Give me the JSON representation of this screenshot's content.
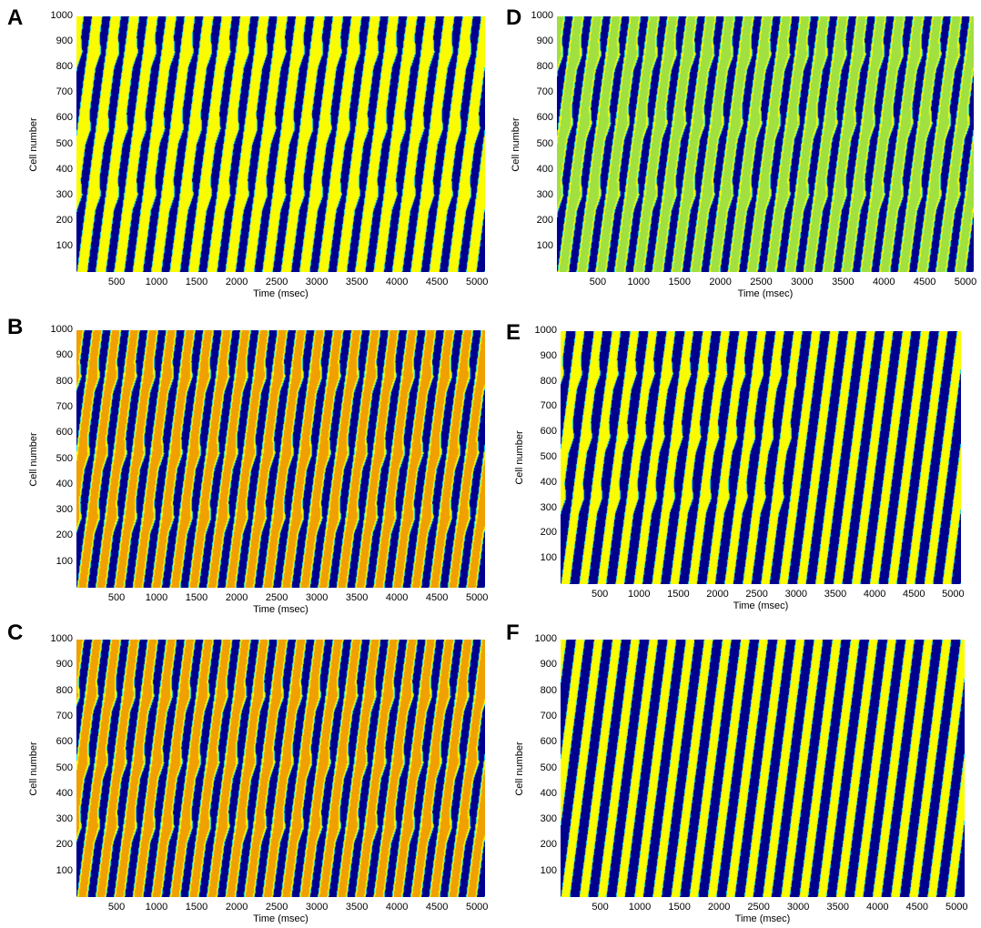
{
  "chart_data": [
    {
      "panel": "A",
      "type": "heatmap",
      "xlabel": "Time (msec)",
      "ylabel": "Cell number",
      "xlim": [
        0,
        5100
      ],
      "ylim": [
        0,
        1000
      ],
      "xticks": [
        500,
        1000,
        1500,
        2000,
        2500,
        3000,
        3500,
        4000,
        4500,
        5000
      ],
      "yticks": [
        100,
        200,
        300,
        400,
        500,
        600,
        700,
        800,
        900,
        1000
      ],
      "wave_count": 22,
      "wave_speed": 1.8,
      "active_fraction": 0.58,
      "core_color": "yellow",
      "merge_rows": [
        300,
        560,
        860
      ]
    },
    {
      "panel": "B",
      "type": "heatmap",
      "xlabel": "Time (msec)",
      "ylabel": "Cell number",
      "xlim": [
        0,
        5100
      ],
      "ylim": [
        0,
        1000
      ],
      "xticks": [
        500,
        1000,
        1500,
        2000,
        2500,
        3000,
        3500,
        4000,
        4500,
        5000
      ],
      "yticks": [
        100,
        200,
        300,
        400,
        500,
        600,
        700,
        800,
        900,
        1000
      ],
      "wave_count": 22,
      "wave_speed": 1.8,
      "active_fraction": 0.6,
      "core_color": "orange",
      "merge_rows": [
        270,
        520,
        820
      ]
    },
    {
      "panel": "C",
      "type": "heatmap",
      "xlabel": "Time (msec)",
      "ylabel": "Cell number",
      "xlim": [
        0,
        5100
      ],
      "ylim": [
        0,
        1000
      ],
      "xticks": [
        500,
        1000,
        1500,
        2000,
        2500,
        3000,
        3500,
        4000,
        4500,
        5000
      ],
      "yticks": [
        100,
        200,
        300,
        400,
        500,
        600,
        700,
        800,
        900,
        1000
      ],
      "wave_count": 22,
      "wave_speed": 1.8,
      "active_fraction": 0.6,
      "core_color": "orange",
      "merge_rows": [
        270,
        520,
        780
      ]
    },
    {
      "panel": "D",
      "type": "heatmap",
      "xlabel": "Time (msec)",
      "ylabel": "Cell number",
      "xlim": [
        0,
        5100
      ],
      "ylim": [
        0,
        1000
      ],
      "xticks": [
        500,
        1000,
        1500,
        2000,
        2500,
        3000,
        3500,
        4000,
        4500,
        5000
      ],
      "yticks": [
        100,
        200,
        300,
        400,
        500,
        600,
        700,
        800,
        900,
        1000
      ],
      "wave_count": 22,
      "wave_speed": 1.8,
      "active_fraction": 0.62,
      "core_color": "green",
      "merge_rows": [
        300,
        580,
        850
      ]
    },
    {
      "panel": "E",
      "type": "heatmap",
      "xlabel": "Time (msec)",
      "ylabel": "Cell number",
      "xlim": [
        0,
        5100
      ],
      "ylim": [
        0,
        1000
      ],
      "xticks": [
        500,
        1000,
        1500,
        2000,
        2500,
        3000,
        3500,
        4000,
        4500,
        5000
      ],
      "yticks": [
        100,
        200,
        300,
        400,
        500,
        600,
        700,
        800,
        900,
        1000
      ],
      "wave_count": 22,
      "wave_speed": 1.8,
      "active_fraction": 0.5,
      "core_color": "yellow",
      "merge_rows": [
        340,
        580,
        830
      ],
      "pattern_until_ms": 3000
    },
    {
      "panel": "F",
      "type": "heatmap",
      "xlabel": "Time (msec)",
      "ylabel": "Cell number",
      "xlim": [
        0,
        5100
      ],
      "ylim": [
        0,
        1000
      ],
      "xticks": [
        500,
        1000,
        1500,
        2000,
        2500,
        3000,
        3500,
        4000,
        4500,
        5000
      ],
      "yticks": [
        100,
        200,
        300,
        400,
        500,
        600,
        700,
        800,
        900,
        1000
      ],
      "wave_count": 22,
      "wave_speed": 1.8,
      "active_fraction": 0.5,
      "core_color": "yellow",
      "merge_rows": []
    }
  ],
  "colors": {
    "background": "#00008f",
    "cyan": "#10e0f0",
    "yellow": "#fcfc00",
    "orange": "#f0a000",
    "green": "#a0e040"
  }
}
